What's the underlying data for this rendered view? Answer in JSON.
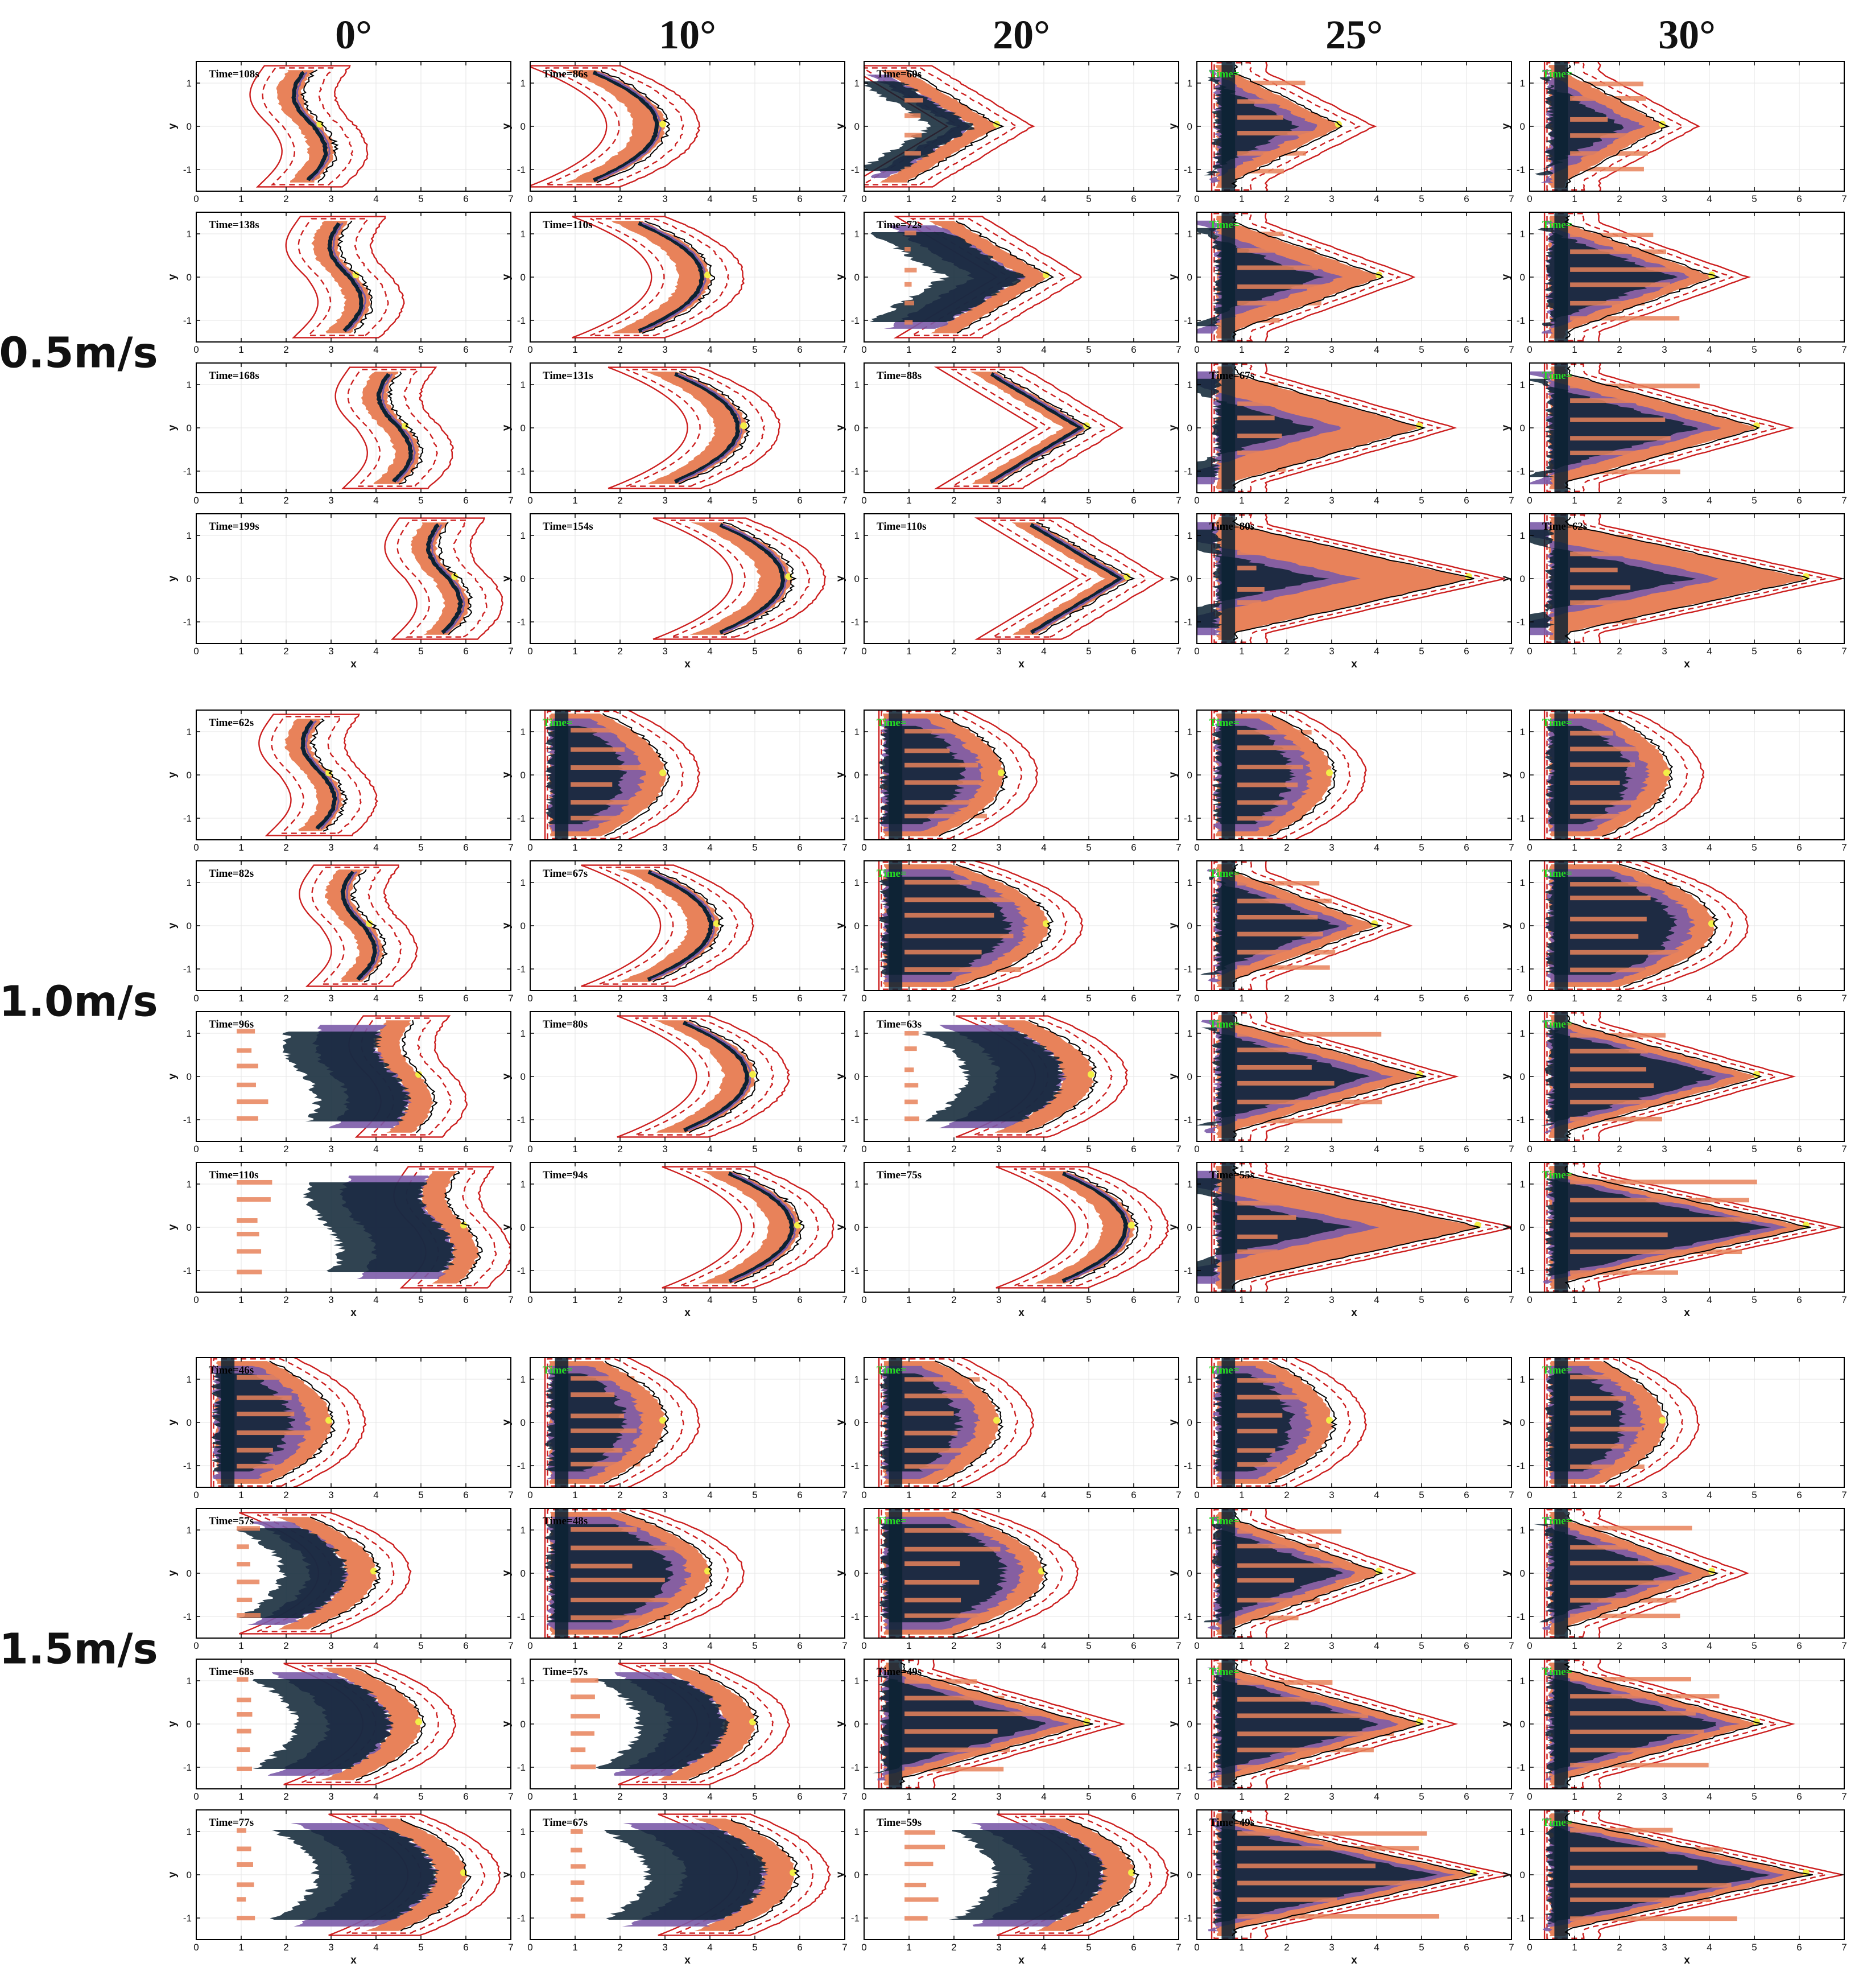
{
  "chart_data": {
    "type": "contour",
    "column_headers": [
      "0°",
      "10°",
      "20°",
      "25°",
      "30°"
    ],
    "row_groups": [
      "0.5m/s",
      "1.0m/s",
      "1.5m/s"
    ],
    "xlabel": "x",
    "ylabel": "y",
    "xlim": [
      0,
      7
    ],
    "ylim": [
      -1.5,
      1.5
    ],
    "xticks": [
      "0",
      "1",
      "2",
      "3",
      "4",
      "5",
      "6",
      "7"
    ],
    "yticks": [
      "1",
      "0",
      "-1"
    ],
    "colors": {
      "fill_main": "#e8825a",
      "fill_purple": "#7b5ba8",
      "fill_dark": "#0c2233",
      "fill_yellow": "#f2ef46",
      "contour_black": "#000000",
      "contour_red": "#cc1f1f",
      "time_label_default": "#000000",
      "time_label_green": "#22dd22"
    },
    "panels": [
      {
        "speed": "0.5m/s",
        "angle": "0°",
        "time": "Time=108s",
        "front": 2.8,
        "shape": "wave",
        "fill": 0.0
      },
      {
        "speed": "0.5m/s",
        "angle": "0°",
        "time": "Time=138s",
        "front": 3.6,
        "shape": "wave",
        "fill": 0.0
      },
      {
        "speed": "0.5m/s",
        "angle": "0°",
        "time": "Time=168s",
        "front": 4.7,
        "shape": "wave",
        "fill": 0.0
      },
      {
        "speed": "0.5m/s",
        "angle": "0°",
        "time": "Time=199s",
        "front": 5.8,
        "shape": "wave",
        "fill": 0.0
      },
      {
        "speed": "0.5m/s",
        "angle": "10°",
        "time": "Time=86s",
        "front": 3.0,
        "shape": "crescent",
        "fill": 0.0
      },
      {
        "speed": "0.5m/s",
        "angle": "10°",
        "time": "Time=110s",
        "front": 4.0,
        "shape": "crescent",
        "fill": 0.0
      },
      {
        "speed": "0.5m/s",
        "angle": "10°",
        "time": "Time=131s",
        "front": 4.8,
        "shape": "crescent",
        "fill": 0.0
      },
      {
        "speed": "0.5m/s",
        "angle": "10°",
        "time": "Time=154s",
        "front": 5.8,
        "shape": "crescent",
        "fill": 0.0
      },
      {
        "speed": "0.5m/s",
        "angle": "20°",
        "time": "Time=60s",
        "front": 3.0,
        "shape": "chevron",
        "fill": 0.35
      },
      {
        "speed": "0.5m/s",
        "angle": "20°",
        "time": "Time=72s",
        "front": 4.1,
        "shape": "chevron",
        "fill": 0.1
      },
      {
        "speed": "0.5m/s",
        "angle": "20°",
        "time": "Time=88s",
        "front": 5.0,
        "shape": "chevron",
        "fill": 0.0
      },
      {
        "speed": "0.5m/s",
        "angle": "20°",
        "time": "Time=110s",
        "front": 5.9,
        "shape": "chevron",
        "fill": 0.0
      },
      {
        "speed": "0.5m/s",
        "angle": "25°",
        "time": "Time=",
        "front": 3.2,
        "shape": "wedge",
        "fill": 1.0
      },
      {
        "speed": "0.5m/s",
        "angle": "25°",
        "time": "Time=",
        "front": 4.1,
        "shape": "wedge",
        "fill": 0.7
      },
      {
        "speed": "0.5m/s",
        "angle": "25°",
        "time": "Time=67s",
        "front": 5.0,
        "shape": "wedge",
        "fill": 0.3
      },
      {
        "speed": "0.5m/s",
        "angle": "25°",
        "time": "Time=80s",
        "front": 6.1,
        "shape": "wedge",
        "fill": 0.15
      },
      {
        "speed": "0.5m/s",
        "angle": "30°",
        "time": "Time=",
        "front": 3.0,
        "shape": "wedge",
        "fill": 1.0
      },
      {
        "speed": "0.5m/s",
        "angle": "30°",
        "time": "Time=",
        "front": 4.1,
        "shape": "wedge",
        "fill": 1.0
      },
      {
        "speed": "0.5m/s",
        "angle": "30°",
        "time": "Time=",
        "front": 5.1,
        "shape": "wedge",
        "fill": 0.8
      },
      {
        "speed": "0.5m/s",
        "angle": "30°",
        "time": "Time=62s",
        "front": 6.2,
        "shape": "wedge",
        "fill": 0.4
      },
      {
        "speed": "1.0m/s",
        "angle": "0°",
        "time": "Time=62s",
        "front": 3.0,
        "shape": "wave",
        "fill": 0.0
      },
      {
        "speed": "1.0m/s",
        "angle": "0°",
        "time": "Time=82s",
        "front": 3.9,
        "shape": "wave",
        "fill": 0.0
      },
      {
        "speed": "1.0m/s",
        "angle": "0°",
        "time": "Time=96s",
        "front": 5.0,
        "shape": "wave",
        "fill": 0.2
      },
      {
        "speed": "1.0m/s",
        "angle": "0°",
        "time": "Time=110s",
        "front": 6.0,
        "shape": "wave",
        "fill": 0.2
      },
      {
        "speed": "1.0m/s",
        "angle": "10°",
        "time": "Time=",
        "front": 3.0,
        "shape": "blunt",
        "fill": 1.0
      },
      {
        "speed": "1.0m/s",
        "angle": "10°",
        "time": "Time=67s",
        "front": 4.2,
        "shape": "crescent",
        "fill": 0.0
      },
      {
        "speed": "1.0m/s",
        "angle": "10°",
        "time": "Time=80s",
        "front": 5.0,
        "shape": "crescent",
        "fill": 0.0
      },
      {
        "speed": "1.0m/s",
        "angle": "10°",
        "time": "Time=94s",
        "front": 6.0,
        "shape": "crescent",
        "fill": 0.0
      },
      {
        "speed": "1.0m/s",
        "angle": "20°",
        "time": "Time=",
        "front": 3.1,
        "shape": "blunt",
        "fill": 1.0
      },
      {
        "speed": "1.0m/s",
        "angle": "20°",
        "time": "Time=",
        "front": 4.1,
        "shape": "blunt",
        "fill": 1.0
      },
      {
        "speed": "1.0m/s",
        "angle": "20°",
        "time": "Time=63s",
        "front": 5.1,
        "shape": "crescent",
        "fill": 0.1
      },
      {
        "speed": "1.0m/s",
        "angle": "20°",
        "time": "Time=75s",
        "front": 6.0,
        "shape": "crescent",
        "fill": 0.0
      },
      {
        "speed": "1.0m/s",
        "angle": "25°",
        "time": "Time=",
        "front": 3.0,
        "shape": "blunt",
        "fill": 1.0
      },
      {
        "speed": "1.0m/s",
        "angle": "25°",
        "time": "Time=",
        "front": 4.0,
        "shape": "wedge",
        "fill": 1.0
      },
      {
        "speed": "1.0m/s",
        "angle": "25°",
        "time": "Time=",
        "front": 5.0,
        "shape": "wedge",
        "fill": 0.9
      },
      {
        "speed": "1.0m/s",
        "angle": "25°",
        "time": "Time=55s",
        "front": 6.3,
        "shape": "wedge",
        "fill": 0.3
      },
      {
        "speed": "1.0m/s",
        "angle": "30°",
        "time": "Time=",
        "front": 3.1,
        "shape": "blunt",
        "fill": 1.0
      },
      {
        "speed": "1.0m/s",
        "angle": "30°",
        "time": "Time=",
        "front": 4.1,
        "shape": "blunt",
        "fill": 1.0
      },
      {
        "speed": "1.0m/s",
        "angle": "30°",
        "time": "Time=",
        "front": 5.1,
        "shape": "wedge",
        "fill": 1.0
      },
      {
        "speed": "1.0m/s",
        "angle": "30°",
        "time": "Time=",
        "front": 6.2,
        "shape": "wedge",
        "fill": 1.0
      },
      {
        "speed": "1.5m/s",
        "angle": "0°",
        "time": "Time=46s",
        "front": 3.0,
        "shape": "blunt",
        "fill": 1.0
      },
      {
        "speed": "1.5m/s",
        "angle": "0°",
        "time": "Time=57s",
        "front": 4.0,
        "shape": "crescent",
        "fill": 0.2
      },
      {
        "speed": "1.5m/s",
        "angle": "0°",
        "time": "Time=68s",
        "front": 5.0,
        "shape": "crescent",
        "fill": 0.1
      },
      {
        "speed": "1.5m/s",
        "angle": "0°",
        "time": "Time=77s",
        "front": 6.0,
        "shape": "crescent",
        "fill": 0.1
      },
      {
        "speed": "1.5m/s",
        "angle": "10°",
        "time": "Time=",
        "front": 3.0,
        "shape": "blunt",
        "fill": 1.0
      },
      {
        "speed": "1.5m/s",
        "angle": "10°",
        "time": "Time=48s",
        "front": 4.0,
        "shape": "blunt",
        "fill": 1.0
      },
      {
        "speed": "1.5m/s",
        "angle": "10°",
        "time": "Time=57s",
        "front": 5.0,
        "shape": "crescent",
        "fill": 0.2
      },
      {
        "speed": "1.5m/s",
        "angle": "10°",
        "time": "Time=67s",
        "front": 5.9,
        "shape": "crescent",
        "fill": 0.1
      },
      {
        "speed": "1.5m/s",
        "angle": "20°",
        "time": "Time=",
        "front": 3.0,
        "shape": "blunt",
        "fill": 1.0
      },
      {
        "speed": "1.5m/s",
        "angle": "20°",
        "time": "Time=",
        "front": 4.0,
        "shape": "blunt",
        "fill": 1.0
      },
      {
        "speed": "1.5m/s",
        "angle": "20°",
        "time": "Time=49s",
        "front": 5.0,
        "shape": "wedge",
        "fill": 1.0
      },
      {
        "speed": "1.5m/s",
        "angle": "20°",
        "time": "Time=59s",
        "front": 6.0,
        "shape": "crescent",
        "fill": 0.2
      },
      {
        "speed": "1.5m/s",
        "angle": "25°",
        "time": "Time=",
        "front": 3.0,
        "shape": "blunt",
        "fill": 1.0
      },
      {
        "speed": "1.5m/s",
        "angle": "25°",
        "time": "Time=",
        "front": 4.1,
        "shape": "wedge",
        "fill": 1.0
      },
      {
        "speed": "1.5m/s",
        "angle": "25°",
        "time": "Time=",
        "front": 5.0,
        "shape": "wedge",
        "fill": 1.0
      },
      {
        "speed": "1.5m/s",
        "angle": "25°",
        "time": "Time=49s",
        "front": 6.2,
        "shape": "wedge",
        "fill": 1.0
      },
      {
        "speed": "1.5m/s",
        "angle": "30°",
        "time": "Time=",
        "front": 3.0,
        "shape": "blunt",
        "fill": 1.0
      },
      {
        "speed": "1.5m/s",
        "angle": "30°",
        "time": "Time=",
        "front": 4.1,
        "shape": "wedge",
        "fill": 1.0
      },
      {
        "speed": "1.5m/s",
        "angle": "30°",
        "time": "Time=",
        "front": 5.1,
        "shape": "wedge",
        "fill": 1.0
      },
      {
        "speed": "1.5m/s",
        "angle": "30°",
        "time": "Time=",
        "front": 6.2,
        "shape": "wedge",
        "fill": 1.0
      }
    ]
  }
}
